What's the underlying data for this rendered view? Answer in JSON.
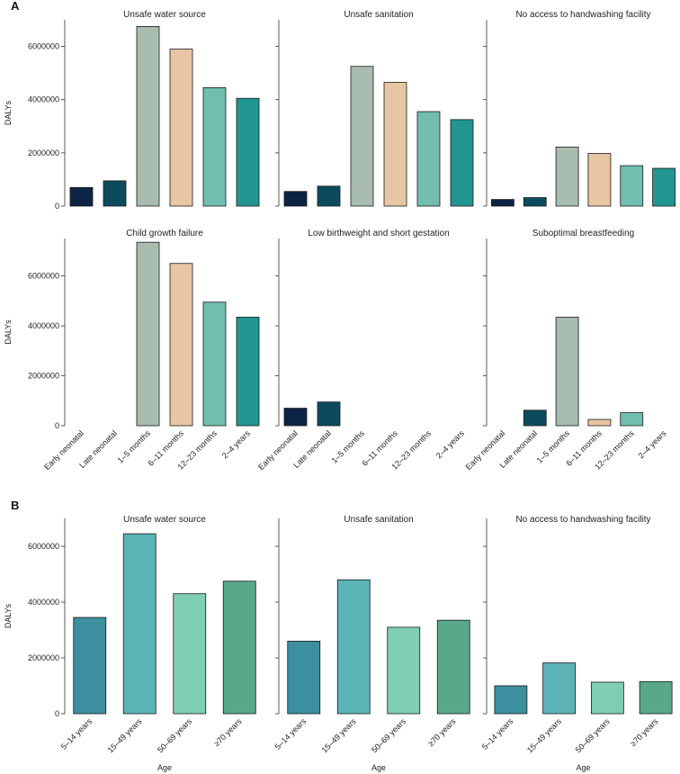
{
  "section_labels": [
    "A",
    "B"
  ],
  "colors": {
    "age_children": [
      "#0e2444",
      "#0c4b5e",
      "#a9bcb0",
      "#e8c5a3",
      "#71bdb0",
      "#219690"
    ],
    "age_adults": [
      "#3b8f9f",
      "#5bb3b6",
      "#7fcdb5",
      "#5aa88a"
    ]
  },
  "chart_data": [
    {
      "type": "bar",
      "section": "A",
      "title": "Unsafe water source",
      "ylabel": "DALYs",
      "xlabel": "",
      "ylim": [
        0,
        7000000
      ],
      "yticks": [
        0,
        2000000,
        4000000,
        6000000
      ],
      "ytick_labels": [
        "0",
        "2000000",
        "4000000",
        "6000000"
      ],
      "categories": [
        "Early neonatal",
        "Late neonatal",
        "1–5 months",
        "6–11 months",
        "12–23 months",
        "2–4 years"
      ],
      "values": [
        700000,
        950000,
        6750000,
        5900000,
        4450000,
        4050000
      ],
      "show_xticks": false
    },
    {
      "type": "bar",
      "section": "A",
      "title": "Unsafe sanitation",
      "ylabel": "",
      "xlabel": "",
      "ylim": [
        0,
        7000000
      ],
      "yticks": [
        0,
        2000000,
        4000000,
        6000000
      ],
      "ytick_labels": [],
      "categories": [
        "Early neonatal",
        "Late neonatal",
        "1–5 months",
        "6–11 months",
        "12–23 months",
        "2–4 years"
      ],
      "values": [
        550000,
        750000,
        5250000,
        4650000,
        3550000,
        3250000
      ],
      "show_xticks": false
    },
    {
      "type": "bar",
      "section": "A",
      "title": "No access to handwashing facility",
      "ylabel": "",
      "xlabel": "",
      "ylim": [
        0,
        7000000
      ],
      "yticks": [
        0,
        2000000,
        4000000,
        6000000
      ],
      "ytick_labels": [],
      "categories": [
        "Early neonatal",
        "Late neonatal",
        "1–5 months",
        "6–11 months",
        "12–23 months",
        "2–4 years"
      ],
      "values": [
        250000,
        320000,
        2220000,
        1980000,
        1520000,
        1420000
      ],
      "show_xticks": false
    },
    {
      "type": "bar",
      "section": "A",
      "title": "Child growth failure",
      "ylabel": "DALYs",
      "xlabel": "",
      "ylim": [
        0,
        7500000
      ],
      "yticks": [
        0,
        2000000,
        4000000,
        6000000
      ],
      "ytick_labels": [
        "0",
        "2000000",
        "4000000",
        "6000000"
      ],
      "categories": [
        "Early neonatal",
        "Late neonatal",
        "1–5 months",
        "6–11 months",
        "12–23 months",
        "2–4 years"
      ],
      "values": [
        0,
        0,
        7350000,
        6500000,
        4950000,
        4350000
      ],
      "show_xticks": true
    },
    {
      "type": "bar",
      "section": "A",
      "title": "Low birthweight and short gestation",
      "ylabel": "",
      "xlabel": "",
      "ylim": [
        0,
        7500000
      ],
      "yticks": [
        0,
        2000000,
        4000000,
        6000000
      ],
      "ytick_labels": [],
      "categories": [
        "Early neonatal",
        "Late neonatal",
        "1–5 months",
        "6–11 months",
        "12–23 months",
        "2–4 years"
      ],
      "values": [
        700000,
        950000,
        0,
        0,
        0,
        0
      ],
      "show_xticks": true
    },
    {
      "type": "bar",
      "section": "A",
      "title": "Suboptimal breastfeeding",
      "ylabel": "",
      "xlabel": "",
      "ylim": [
        0,
        7500000
      ],
      "yticks": [
        0,
        2000000,
        4000000,
        6000000
      ],
      "ytick_labels": [],
      "categories": [
        "Early neonatal",
        "Late neonatal",
        "1–5 months",
        "6–11 months",
        "12–23 months",
        "2–4 years"
      ],
      "values": [
        0,
        620000,
        4350000,
        250000,
        520000,
        0
      ],
      "show_xticks": true
    },
    {
      "type": "bar",
      "section": "B",
      "title": "Unsafe water source",
      "ylabel": "DALYs",
      "xlabel": "Age",
      "ylim": [
        0,
        7000000
      ],
      "yticks": [
        0,
        2000000,
        4000000,
        6000000
      ],
      "ytick_labels": [
        "0",
        "2000000",
        "4000000",
        "6000000"
      ],
      "categories": [
        "5–14 years",
        "15–49 years",
        "50–69 years",
        "≥70 years"
      ],
      "values": [
        3450000,
        6450000,
        4300000,
        4750000
      ],
      "show_xticks": true
    },
    {
      "type": "bar",
      "section": "B",
      "title": "Unsafe sanitation",
      "ylabel": "",
      "xlabel": "Age",
      "ylim": [
        0,
        7000000
      ],
      "yticks": [
        0,
        2000000,
        4000000,
        6000000
      ],
      "ytick_labels": [],
      "categories": [
        "5–14 years",
        "15–49 years",
        "50–69 years",
        "≥70 years"
      ],
      "values": [
        2600000,
        4800000,
        3100000,
        3350000
      ],
      "show_xticks": true
    },
    {
      "type": "bar",
      "section": "B",
      "title": "No access to handwashing facility",
      "ylabel": "",
      "xlabel": "Age",
      "ylim": [
        0,
        7000000
      ],
      "yticks": [
        0,
        2000000,
        4000000,
        6000000
      ],
      "ytick_labels": [],
      "categories": [
        "5–14 years",
        "15–49 years",
        "50–69 years",
        "≥70 years"
      ],
      "values": [
        1000000,
        1820000,
        1130000,
        1150000
      ],
      "show_xticks": true
    }
  ]
}
